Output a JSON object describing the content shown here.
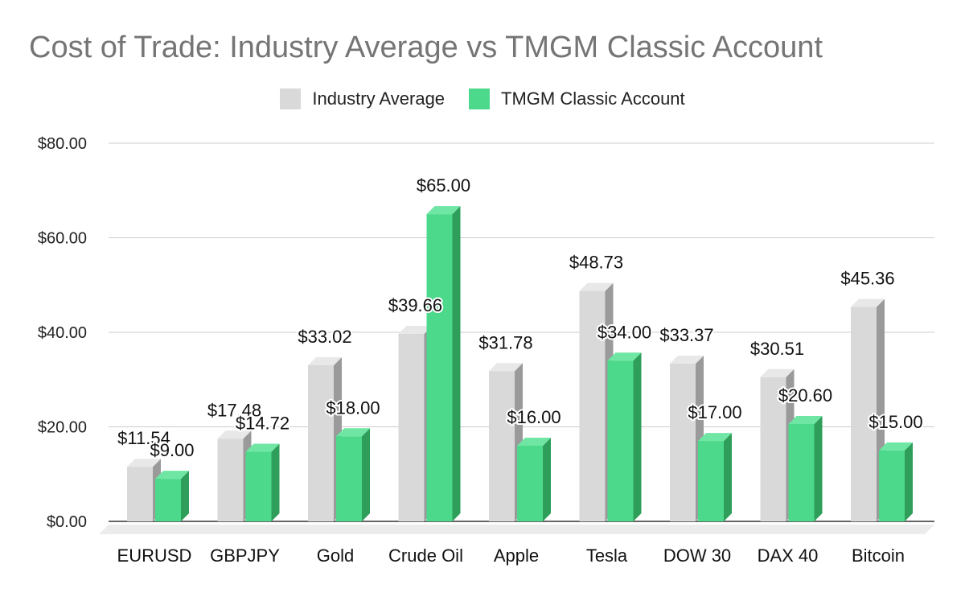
{
  "chart_data": {
    "type": "bar",
    "title": "Cost of Trade: Industry Average vs TMGM Classic Account",
    "categories": [
      "EURUSD",
      "GBPJPY",
      "Gold",
      "Crude Oil",
      "Apple",
      "Tesla",
      "DOW 30",
      "DAX 40",
      "Bitcoin"
    ],
    "series": [
      {
        "name": "Industry Average",
        "color": "#d9d9d9",
        "values": [
          11.54,
          17.48,
          33.02,
          39.66,
          31.78,
          48.73,
          33.37,
          30.51,
          45.36
        ],
        "labels": [
          "$11.54",
          "$17.48",
          "$33.02",
          "$39.66",
          "$31.78",
          "$48.73",
          "$33.37",
          "$30.51",
          "$45.36"
        ]
      },
      {
        "name": "TMGM Classic Account",
        "color": "#4cd98b",
        "values": [
          9.0,
          14.72,
          18.0,
          65.0,
          16.0,
          34.0,
          17.0,
          20.6,
          15.0
        ],
        "labels": [
          "$9.00",
          "$14.72",
          "$18.00",
          "$65.00",
          "$16.00",
          "$34.00",
          "$17.00",
          "$20.60",
          "$15.00"
        ]
      }
    ],
    "ylim": [
      0,
      80
    ],
    "yticks": [
      0,
      20,
      40,
      60,
      80
    ],
    "ytick_labels": [
      "$0.00",
      "$20.00",
      "$40.00",
      "$60.00",
      "$80.00"
    ],
    "grid": true,
    "legend_position": "top-center",
    "style": "3d-bar"
  }
}
